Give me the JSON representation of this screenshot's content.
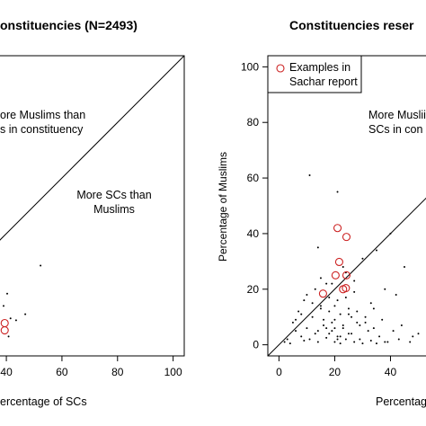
{
  "chart_data": [
    {
      "type": "scatter",
      "title": "onstituencies (N=2493)",
      "xlabel": "ercentage of SCs",
      "xlim": [
        -4,
        104
      ],
      "ylim": [
        -4,
        104
      ],
      "xticks": [
        40,
        60,
        80,
        100
      ],
      "annotations": [
        "ore Muslims than\ns in constituency",
        "More SCs than\nMuslims"
      ],
      "series": [
        {
          "marker": "dot",
          "color": "#000000",
          "x": [
            52.3,
            46.8,
            40.3,
            41.5,
            39.0,
            43.5,
            40.8
          ],
          "y": [
            28.5,
            11,
            18.4,
            9.5,
            14,
            8.8,
            3
          ]
        },
        {
          "marker": "circle",
          "color": "#cc2222",
          "x": [
            39.4,
            39.4
          ],
          "y": [
            7.8,
            5.2
          ]
        }
      ]
    },
    {
      "type": "scatter",
      "title": "Constituencies reser",
      "xlabel": "Percentage",
      "ylabel": "Percentage of Muslims",
      "xlim": [
        -4,
        104
      ],
      "ylim": [
        -4,
        104
      ],
      "xticks": [
        0,
        20,
        40
      ],
      "yticks": [
        0,
        20,
        40,
        60,
        80,
        100
      ],
      "annotations": [
        "More Muslii\nSCs in con"
      ],
      "series": [
        {
          "marker": "dot",
          "color": "#000000",
          "x": [
            11,
            21,
            40,
            35,
            30,
            45,
            14,
            9,
            17,
            24,
            27,
            33,
            38,
            42,
            5,
            7,
            12,
            15,
            18,
            20,
            22,
            25,
            28,
            31,
            34,
            37,
            41,
            44,
            48,
            50,
            3,
            6,
            8,
            10,
            13,
            16,
            19,
            21,
            23,
            26,
            29,
            32,
            36,
            39,
            43,
            47,
            2,
            4,
            9,
            11,
            14,
            17,
            20,
            22,
            24,
            27,
            30,
            33,
            35,
            38,
            12,
            15,
            18,
            21,
            25,
            28,
            16,
            19,
            23,
            26,
            10,
            13,
            20,
            24,
            18,
            22,
            29,
            31,
            6,
            8,
            34,
            14,
            17,
            21,
            25,
            19,
            27,
            15,
            23,
            20
          ],
          "y": [
            61,
            55,
            40,
            34,
            31,
            28,
            35,
            16,
            22,
            26,
            23,
            15,
            20,
            18,
            8,
            12,
            10,
            14,
            12,
            9,
            11,
            13,
            8,
            10,
            6,
            9,
            5,
            7,
            3,
            4,
            2,
            5,
            3,
            6,
            4,
            7,
            5,
            3,
            6,
            4,
            2,
            5,
            3,
            1,
            2,
            1,
            1,
            0.5,
            1.5,
            2,
            1,
            2.5,
            1,
            0.5,
            2,
            1,
            0.5,
            1.5,
            0.5,
            1,
            15,
            13,
            17,
            16,
            11,
            12,
            9,
            8,
            7,
            10,
            18,
            20,
            14,
            17,
            4,
            3,
            7,
            8,
            9,
            11,
            13,
            5,
            6,
            2,
            4,
            22,
            19,
            24,
            28,
            6
          ]
        },
        {
          "marker": "circle",
          "color": "#cc2222",
          "name": "Examples in\nSachar report",
          "x": [
            21,
            24.2,
            21.6,
            20.3,
            24.2,
            23,
            24,
            15.8
          ],
          "y": [
            42,
            38.8,
            29.8,
            25,
            25,
            20,
            20.4,
            18.4
          ]
        }
      ]
    }
  ]
}
